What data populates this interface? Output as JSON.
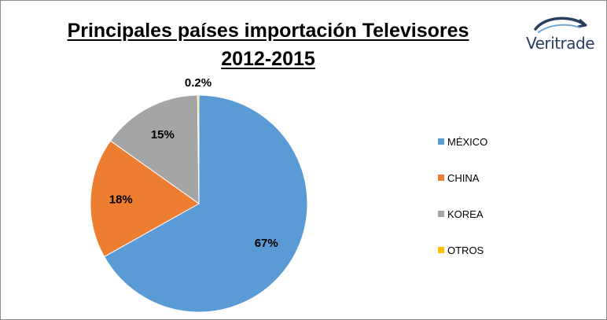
{
  "title_line1": "Principales países importación Televisores",
  "title_line2": "2012-2015",
  "logo": {
    "text": "Veritrade"
  },
  "chart_data": {
    "type": "pie",
    "categories": [
      "MÉXICO",
      "CHINA",
      "KOREA",
      "OTROS"
    ],
    "values": [
      67,
      18,
      15,
      0.2
    ],
    "labels": [
      "67%",
      "18%",
      "15%",
      "0.2%"
    ],
    "colors": [
      "#5b9bd5",
      "#ed7d31",
      "#a5a5a5",
      "#ffc000"
    ],
    "legend_position": "right",
    "start_angle_deg": 0,
    "direction": "clockwise"
  }
}
